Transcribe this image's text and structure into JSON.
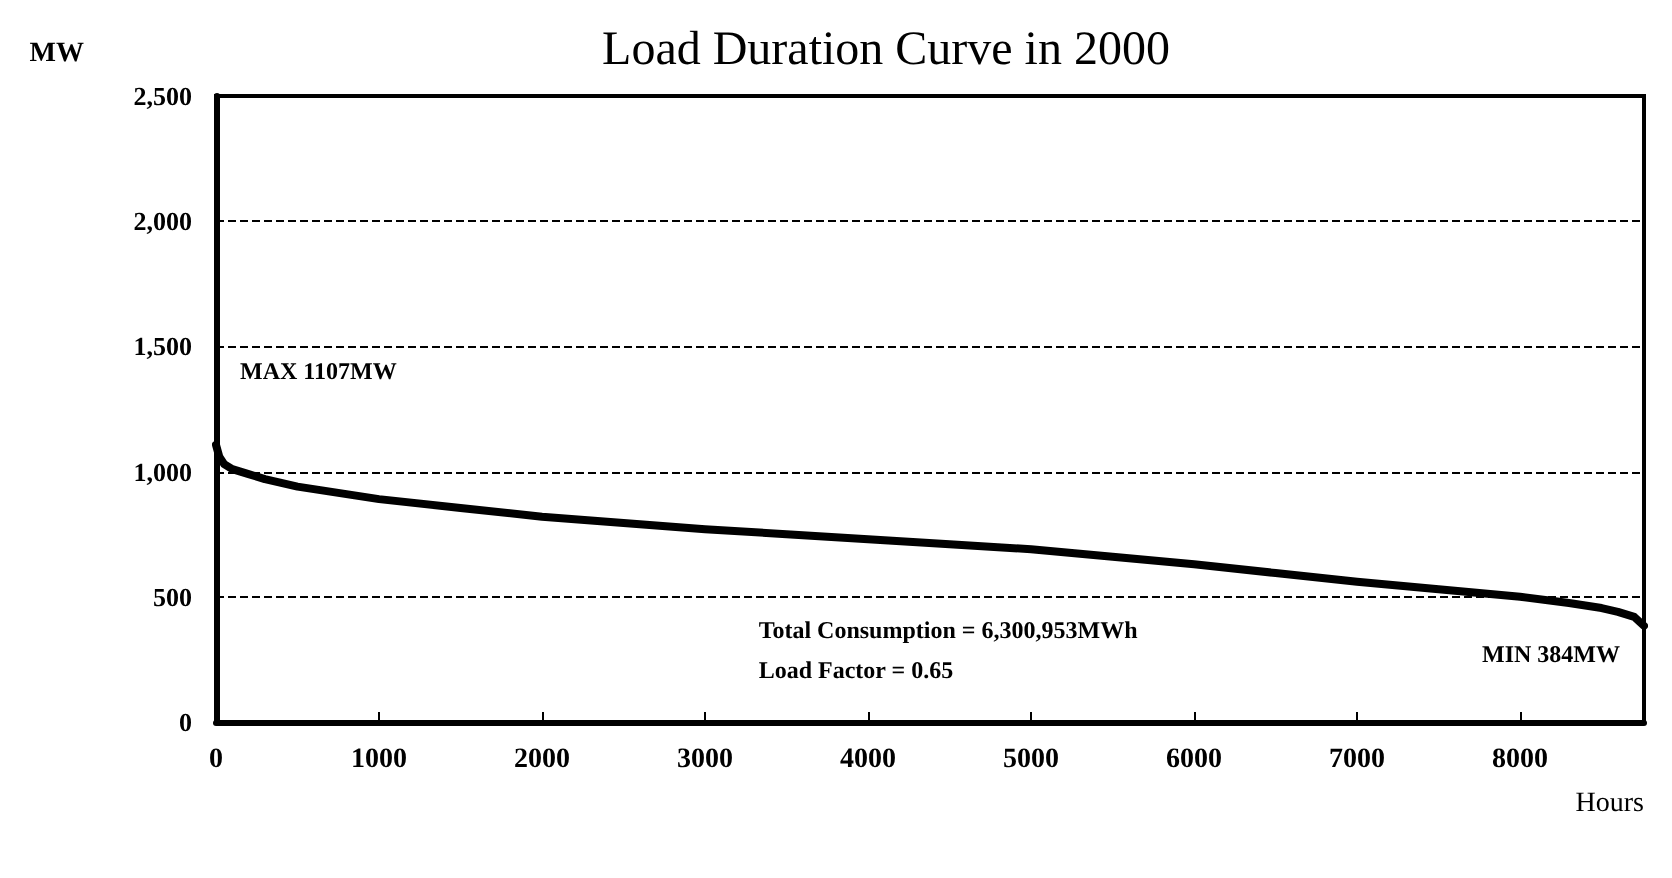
{
  "chart_data": {
    "type": "line",
    "title": "Load Duration Curve in 2000",
    "xlabel": "Hours",
    "ylabel": "MW",
    "x": [
      0,
      20,
      50,
      100,
      200,
      300,
      500,
      1000,
      1500,
      2000,
      2500,
      3000,
      3500,
      4000,
      4500,
      5000,
      5500,
      6000,
      6500,
      7000,
      7500,
      8000,
      8300,
      8500,
      8600,
      8700,
      8760
    ],
    "series": [
      {
        "color": "#000000",
        "values": [
          1107,
          1060,
          1030,
          1010,
          990,
          970,
          940,
          890,
          855,
          820,
          795,
          770,
          750,
          730,
          710,
          690,
          660,
          630,
          595,
          560,
          530,
          500,
          475,
          455,
          440,
          420,
          384
        ]
      }
    ],
    "xlim": [
      0,
      8760
    ],
    "xticks": [
      0,
      1000,
      2000,
      3000,
      4000,
      5000,
      6000,
      7000,
      8000
    ],
    "ylim": [
      0,
      2500
    ],
    "yticks": [
      0,
      500,
      {
        "value": 1000,
        "label": "1,000"
      },
      {
        "value": 1500,
        "label": "1,500"
      },
      {
        "value": 2000,
        "label": "2,000"
      },
      {
        "value": 2500,
        "label": "2,500"
      }
    ],
    "grid": "y",
    "line_style": "solid",
    "marker": "none",
    "annotations": [
      "MAX 1107MW",
      "MIN 384MW",
      "Total Consumption = 6,300,953MWh",
      "Load Factor = 0.65"
    ]
  }
}
